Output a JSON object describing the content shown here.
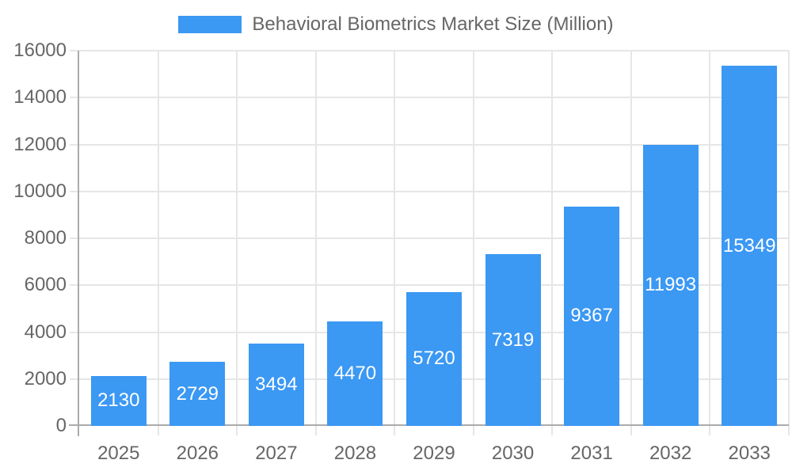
{
  "chart_data": {
    "type": "bar",
    "title": "Behavioral Biometrics Market Size (Million)",
    "legend_position": "top",
    "categories": [
      "2025",
      "2026",
      "2027",
      "2028",
      "2029",
      "2030",
      "2031",
      "2032",
      "2033"
    ],
    "values": [
      2130,
      2729,
      3494,
      4470,
      5720,
      7319,
      9367,
      11993,
      15349
    ],
    "xlabel": "",
    "ylabel": "",
    "ylim": [
      0,
      16000
    ],
    "yticks": [
      0,
      2000,
      4000,
      6000,
      8000,
      10000,
      12000,
      14000,
      16000
    ],
    "grid": true,
    "value_labels": "inside-center",
    "colors": {
      "bar": "#3B98F3",
      "value_label": "#FFFFFF",
      "axis_text": "#666666",
      "grid_line": "#E6E6E6",
      "axis_line": "#ABABAB",
      "background": "#FFFFFF"
    }
  }
}
